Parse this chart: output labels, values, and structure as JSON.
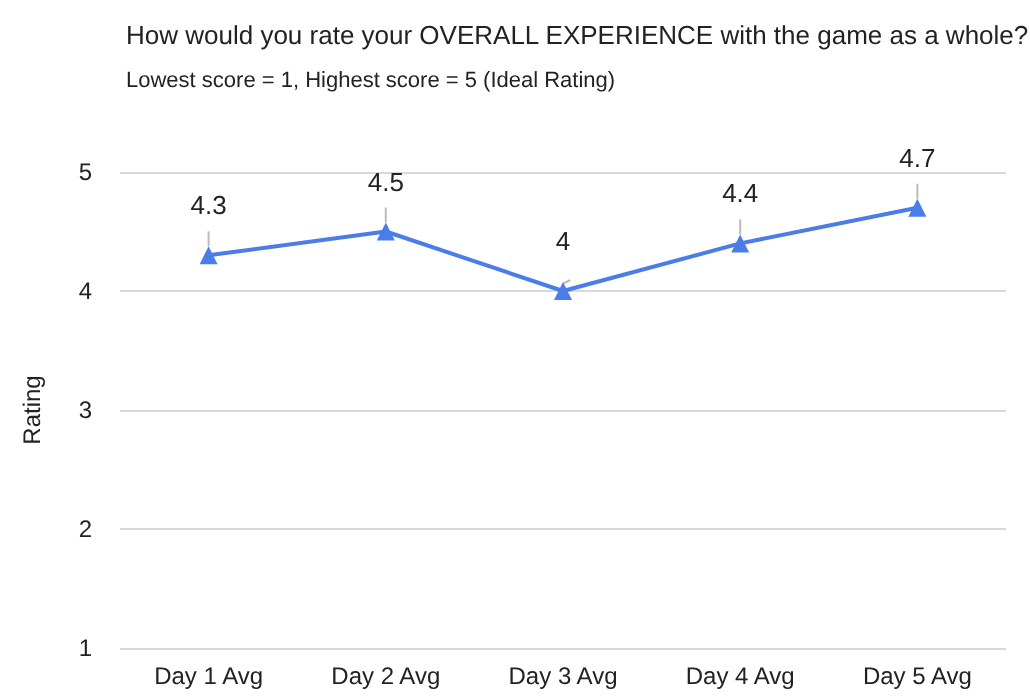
{
  "chart_data": {
    "type": "line",
    "title": "How would you rate your OVERALL EXPERIENCE with the game as a whole?",
    "subtitle": "Lowest score = 1, Highest score = 5 (Ideal Rating)",
    "ylabel": "Rating",
    "categories": [
      "Day 1 Avg",
      "Day 2 Avg",
      "Day 3 Avg",
      "Day 4 Avg",
      "Day 5 Avg"
    ],
    "series": [
      {
        "color": "#4a7de8",
        "values": [
          4.3,
          4.5,
          4,
          4.4,
          4.7
        ]
      }
    ],
    "ylim": [
      1,
      5
    ],
    "yticks": [
      1,
      2,
      3,
      4,
      5
    ],
    "grid": "y",
    "marker": "triangle",
    "line_style": "solid",
    "data_labels": true
  }
}
